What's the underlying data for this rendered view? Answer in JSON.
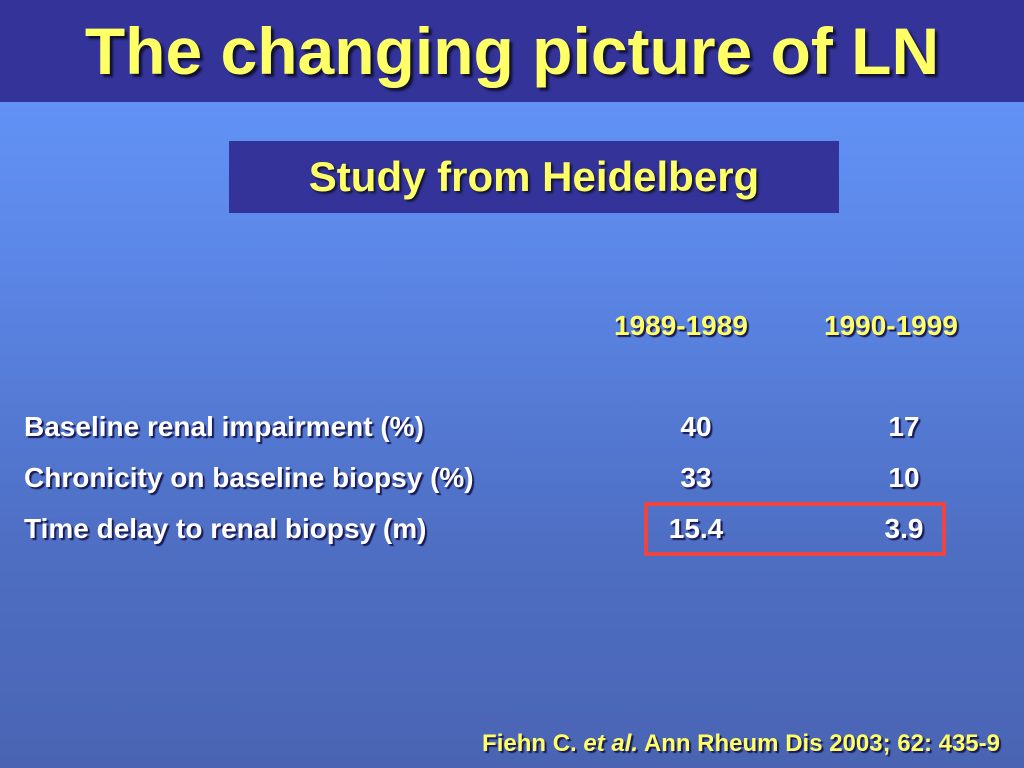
{
  "slide": {
    "title": "The changing picture of LN",
    "subtitle": "Study from Heidelberg"
  },
  "table": {
    "columns": [
      "1989-1989",
      "1990-1999"
    ],
    "rows": [
      {
        "label": "Baseline renal impairment (%)",
        "values": [
          "40",
          "17"
        ]
      },
      {
        "label": "Chronicity on baseline biopsy (%)",
        "values": [
          "33",
          "10"
        ]
      },
      {
        "label": "Time delay to renal biopsy (m)",
        "values": [
          "15.4",
          "3.9"
        ]
      }
    ]
  },
  "citation": {
    "author": "Fiehn C.",
    "etal": "et al.",
    "source": "Ann Rheum Dis 2003; 62: 435-9"
  },
  "colors": {
    "title_text": "#ffff66",
    "title_bar": "#333399",
    "highlight_border": "#ee4444"
  }
}
